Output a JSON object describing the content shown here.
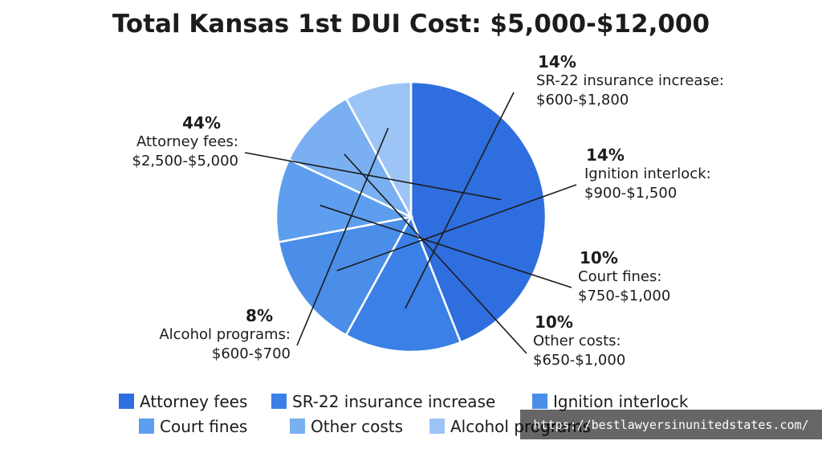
{
  "chart_data": {
    "type": "pie",
    "title": "Total Kansas 1st DUI Cost: $5,000-$12,000",
    "slices": [
      {
        "label": "Attorney fees",
        "legend": "Attorney fees",
        "percent": 44,
        "percent_label": "44%",
        "name_label": "Attorney fees:",
        "range_label": "$2,500-$5,000",
        "color": "#2f6ede"
      },
      {
        "label": "SR-22 insurance increase",
        "legend": "SR-22 insurance increase",
        "percent": 14,
        "percent_label": "14%",
        "name_label": "SR-22 insurance increase:",
        "range_label": "$600-$1,800",
        "color": "#3a80e6"
      },
      {
        "label": "Ignition interlock",
        "legend": "Ignition interlock",
        "percent": 14,
        "percent_label": "14%",
        "name_label": "Ignition interlock:",
        "range_label": "$900-$1,500",
        "color": "#4a8ee8"
      },
      {
        "label": "Court fines",
        "legend": "Court fines",
        "percent": 10,
        "percent_label": "10%",
        "name_label": "Court fines:",
        "range_label": "$750-$1,000",
        "color": "#5e9eee"
      },
      {
        "label": "Other costs",
        "legend": "Other costs",
        "percent": 10,
        "percent_label": "10%",
        "name_label": "Other costs:",
        "range_label": "$650-$1,000",
        "color": "#7ab0f2"
      },
      {
        "label": "Alcohol programs",
        "legend": "Alcohol programs",
        "percent": 8,
        "percent_label": "8%",
        "name_label": "Alcohol programs:",
        "range_label": "$600-$700",
        "color": "#9cc5f6"
      }
    ],
    "legend_placement": "bottom"
  },
  "watermark": {
    "text": "https://bestlawyersinunitedstates.com/"
  }
}
